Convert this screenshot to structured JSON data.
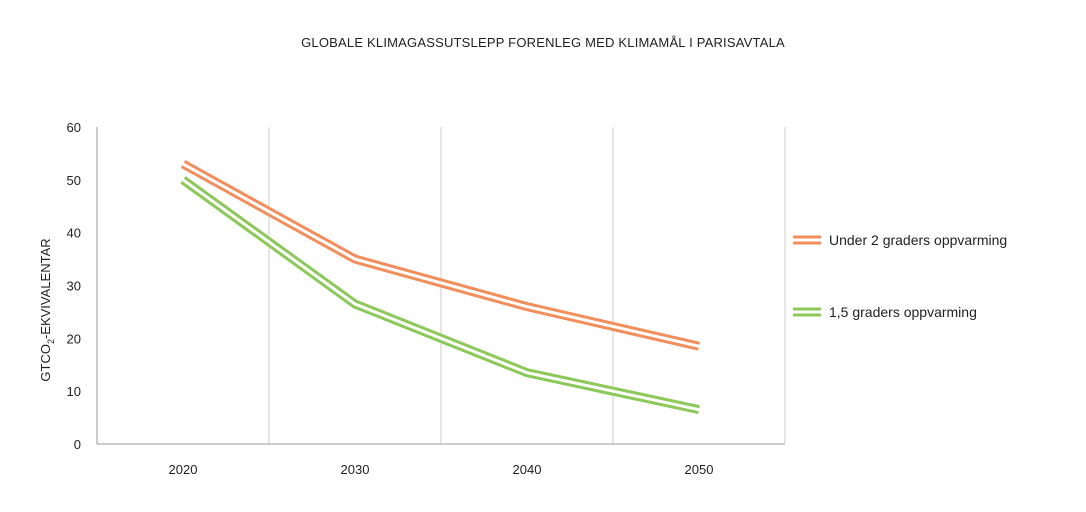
{
  "chart_data": {
    "type": "line",
    "title": "GLOBALE KLIMAGASSUTSLEPP FORENLEG MED KLIMAMÅL I PARISAVTALA",
    "xlabel": "",
    "ylabel": {
      "prefix": "GTCO",
      "subscript": "2",
      "suffix": "-EKVIVALENTAR"
    },
    "categories": [
      "2020",
      "2030",
      "2040",
      "2050"
    ],
    "ylim": [
      0,
      60
    ],
    "yticks": [
      0,
      10,
      20,
      30,
      40,
      50,
      60
    ],
    "grid": "vertical",
    "legend_position": "right",
    "series": [
      {
        "name": "Under 2 graders oppvarming",
        "color": "#f28e5c",
        "style": "double-line",
        "values": [
          53,
          35,
          26,
          18.5
        ]
      },
      {
        "name": "1,5 graders oppvarming",
        "color": "#8cc85a",
        "style": "double-line",
        "values": [
          50,
          26.5,
          13.5,
          6.5
        ]
      }
    ]
  }
}
